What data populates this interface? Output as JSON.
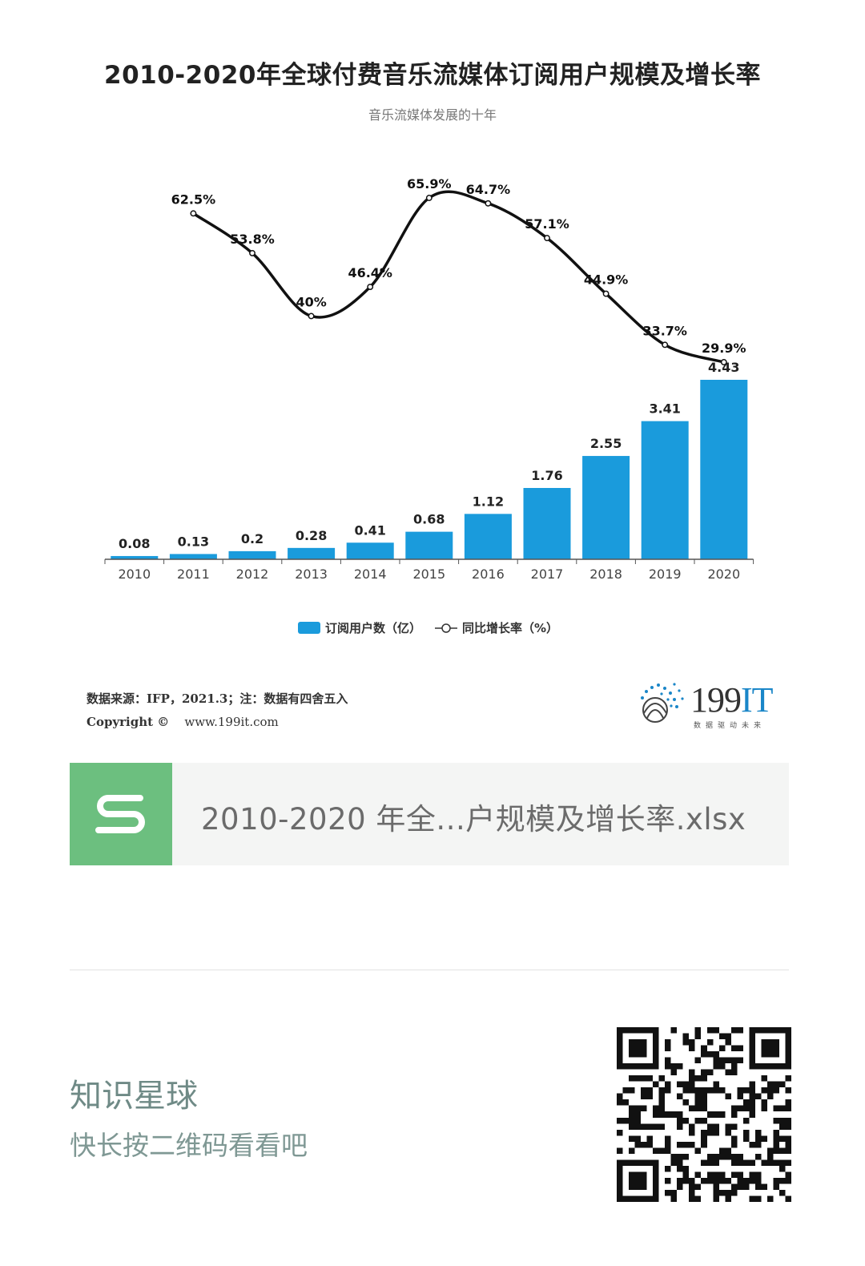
{
  "chart_data": {
    "type": "bar+line",
    "title": "2010-2020年全球付费音乐流媒体订阅用户规模及增长率",
    "subtitle": "音乐流媒体发展的十年",
    "categories": [
      "2010",
      "2011",
      "2012",
      "2013",
      "2014",
      "2015",
      "2016",
      "2017",
      "2018",
      "2019",
      "2020"
    ],
    "series": [
      {
        "name": "订阅用户数（亿）",
        "kind": "bar",
        "color": "#1a9bdc",
        "values": [
          0.08,
          0.13,
          0.2,
          0.28,
          0.41,
          0.68,
          1.12,
          1.76,
          2.55,
          3.41,
          4.43
        ],
        "labels": [
          "0.08",
          "0.13",
          "0.2",
          "0.28",
          "0.41",
          "0.68",
          "1.12",
          "1.76",
          "2.55",
          "3.41",
          "4.43"
        ]
      },
      {
        "name": "同比增长率（%）",
        "kind": "line",
        "color": "#111111",
        "values": [
          null,
          62.5,
          53.8,
          40,
          46.4,
          65.9,
          64.7,
          57.1,
          44.9,
          33.7,
          29.9
        ],
        "labels": [
          "",
          "62.5%",
          "53.8%",
          "40%",
          "46.4%",
          "65.9%",
          "64.7%",
          "57.1%",
          "44.9%",
          "33.7%",
          "29.9%"
        ]
      }
    ],
    "legend_position": "bottom",
    "grid": false
  },
  "source": {
    "line1": "数据来源：IFP，2021.3；注：数据有四舍五入",
    "copyright": "Copyright ©",
    "url": "www.199it.com"
  },
  "logo": {
    "text_num": "199",
    "text_it": "IT",
    "tagline": "数据驱动未来"
  },
  "file": {
    "name": "2010-2020 年全...户规模及增长率.xlsx",
    "icon": "spreadsheet-icon"
  },
  "footer": {
    "title": "知识星球",
    "subtitle": "快长按二维码看看吧"
  }
}
